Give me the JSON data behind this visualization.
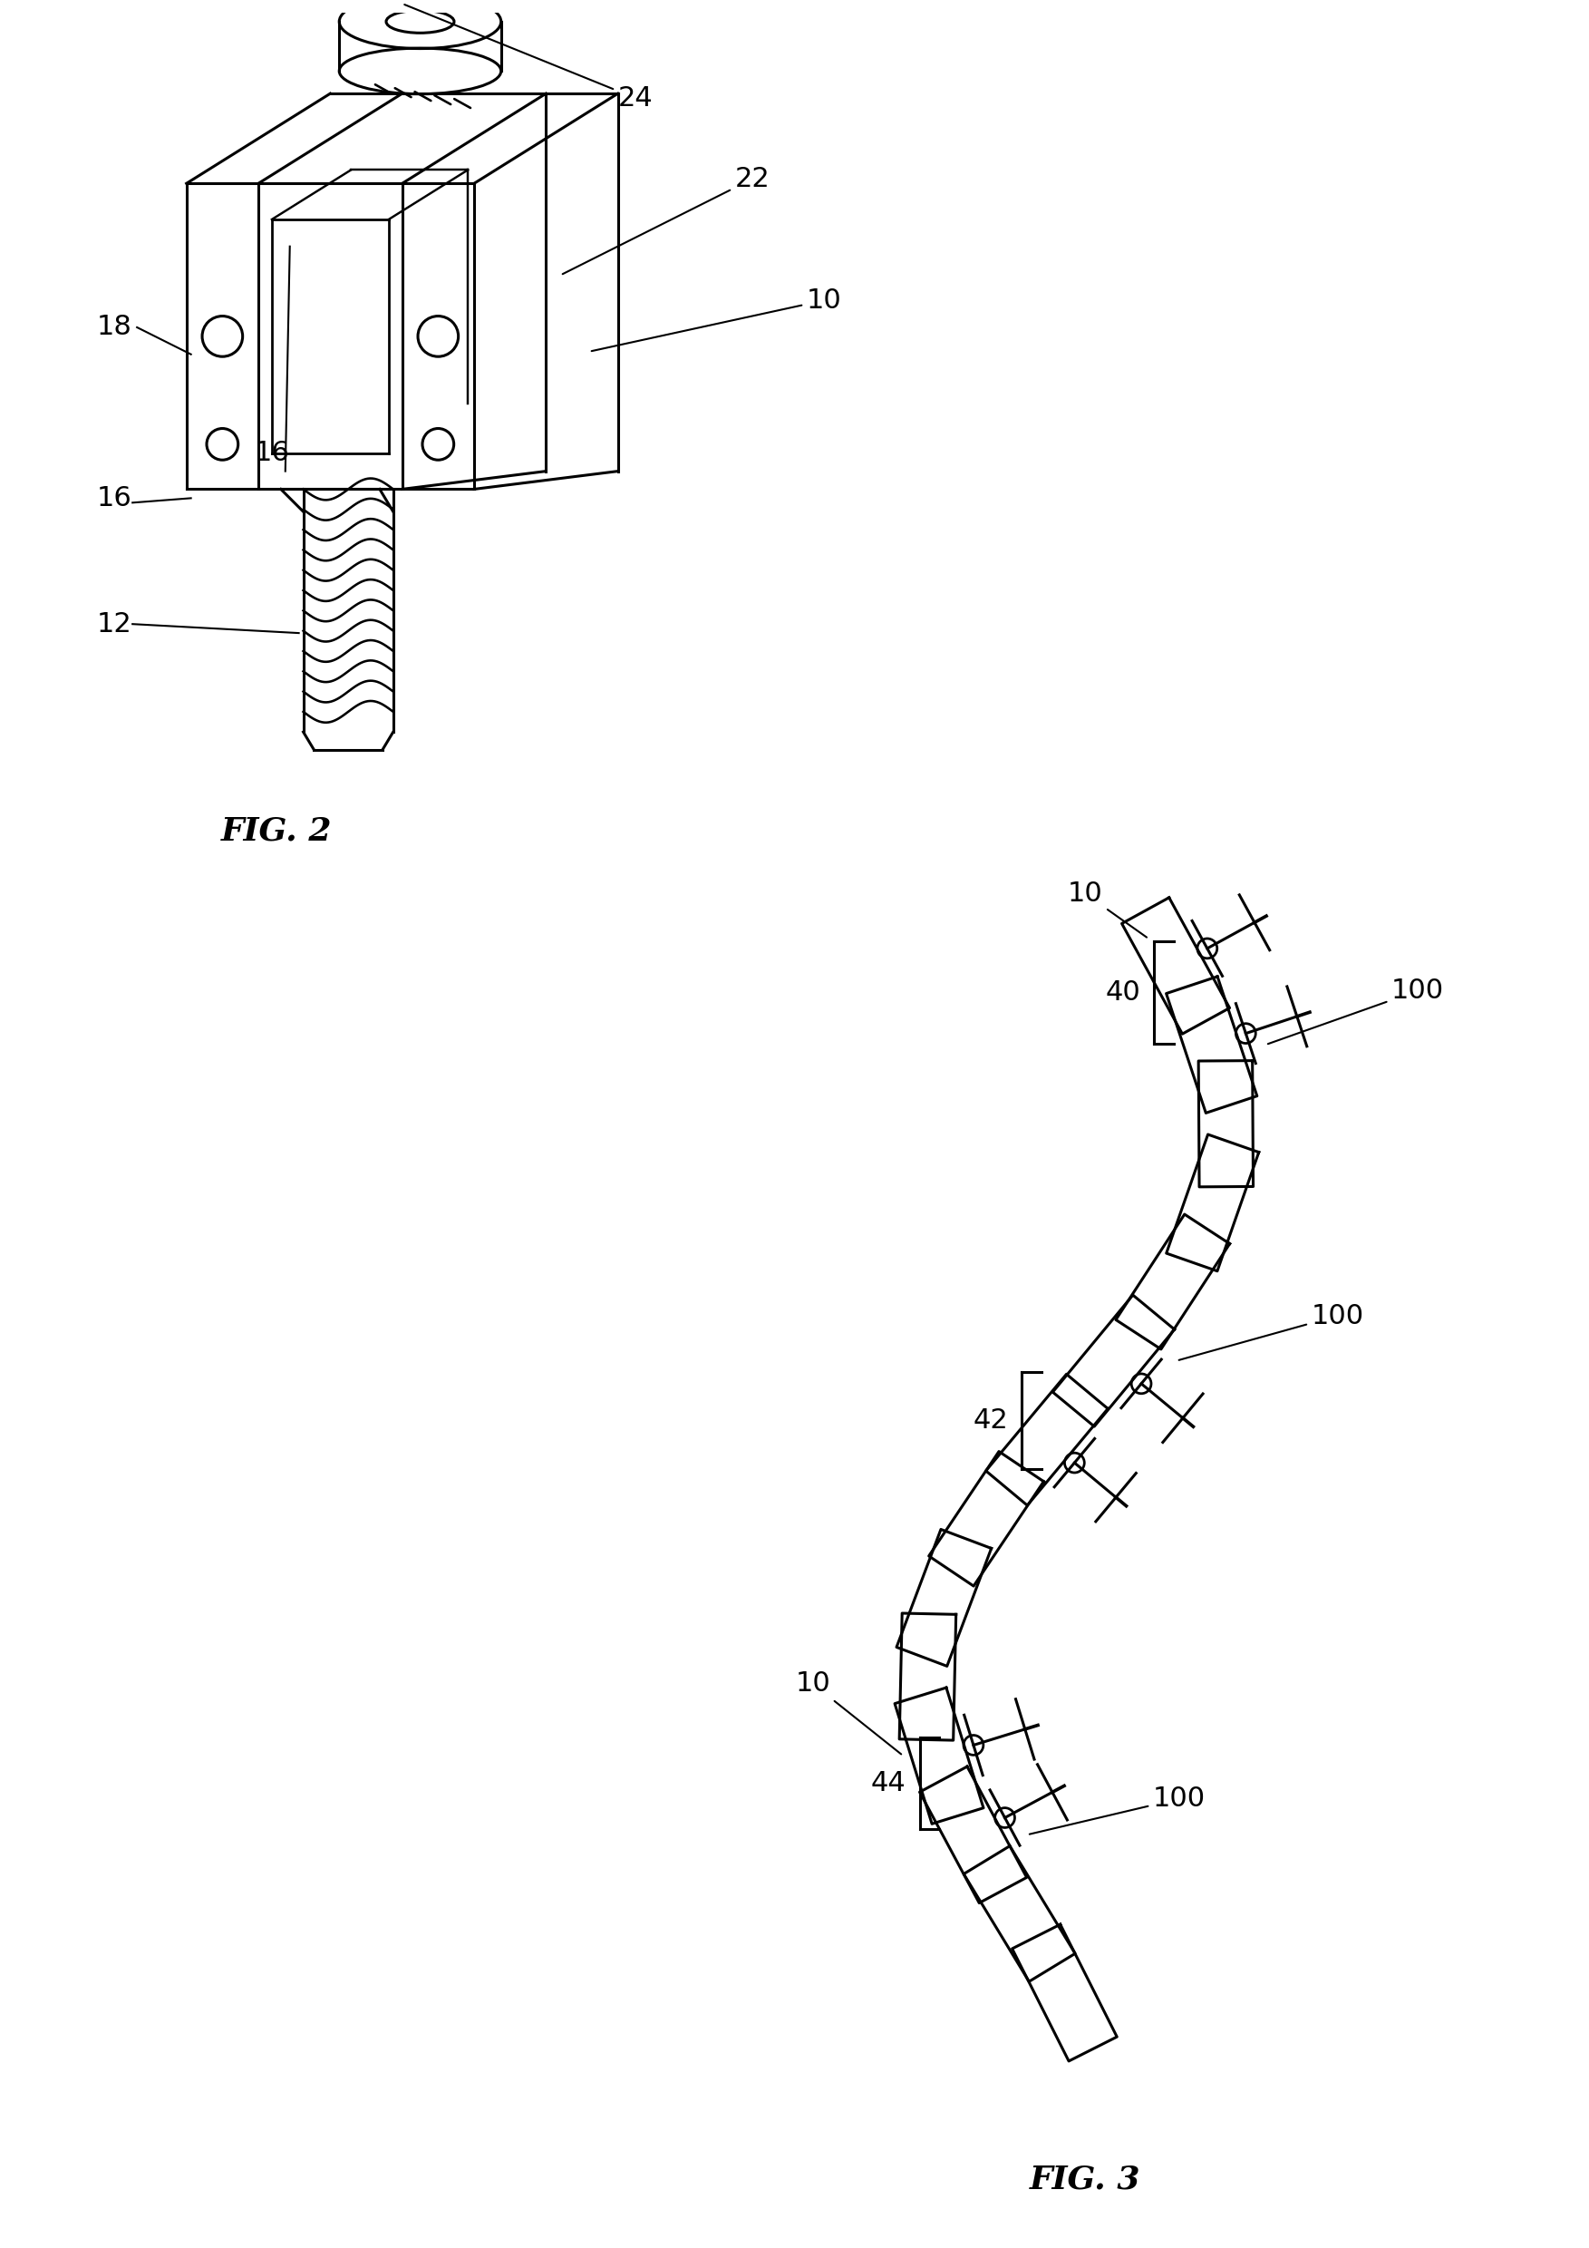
{
  "background_color": "#ffffff",
  "fig2_label": "FIG. 2",
  "fig3_label": "FIG. 3",
  "line_color": "#000000",
  "line_width": 2.2,
  "label_fontsize": 26,
  "annotation_fontsize": 22
}
